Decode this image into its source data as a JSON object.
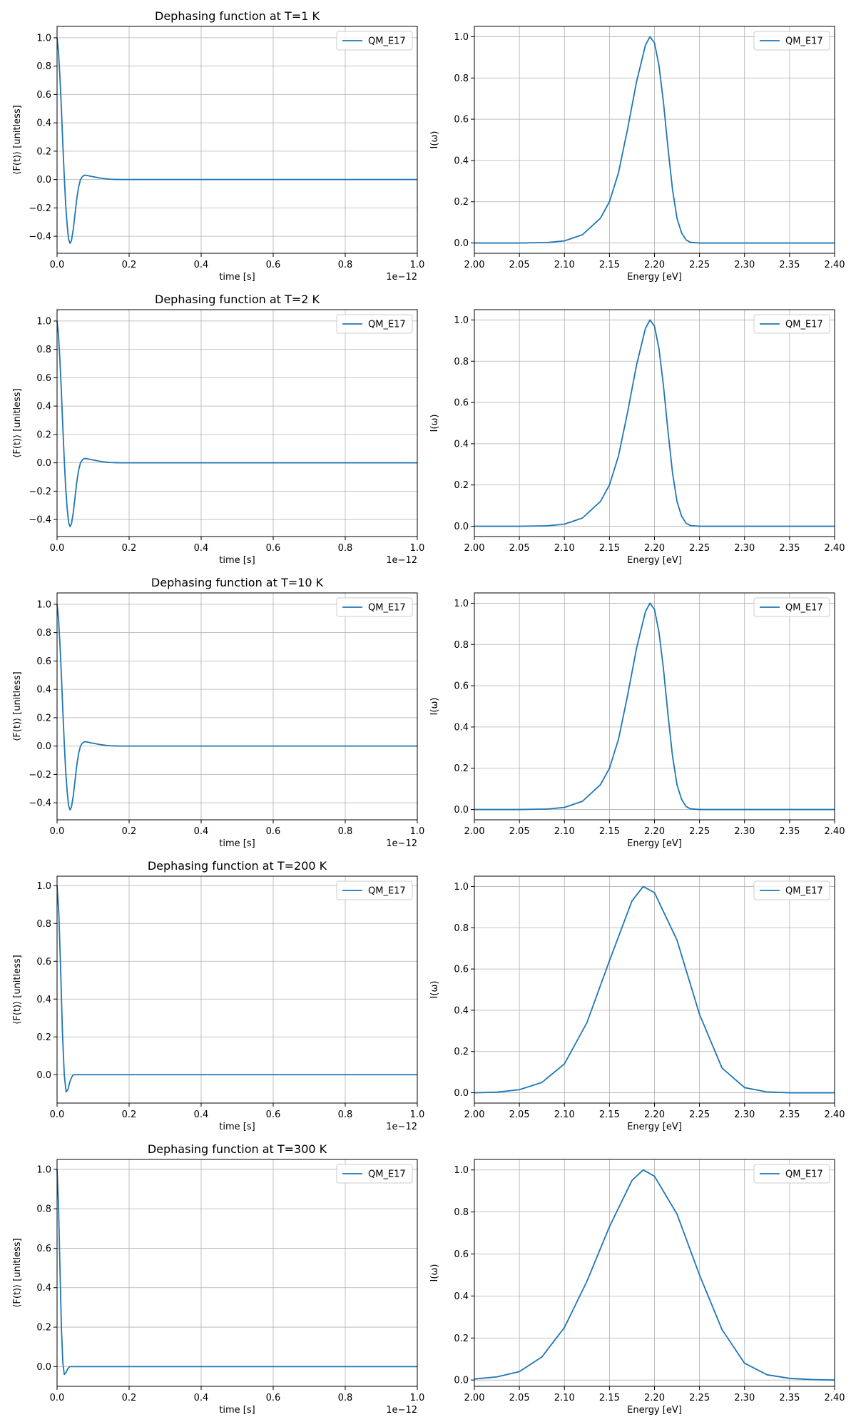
{
  "chart_data": [
    {
      "type": "line",
      "title": "Dephasing function at T=1 K",
      "xlabel": "time [s]",
      "ylabel": "⟨F(t)⟩ [unitless]",
      "x_offset_label": "1e−12",
      "xlim": [
        0,
        1.0
      ],
      "ylim": [
        -0.52,
        1.08
      ],
      "xticks": [
        "0.0",
        "0.2",
        "0.4",
        "0.6",
        "0.8",
        "1.0"
      ],
      "yticks": [
        "−0.4",
        "−0.2",
        "0.0",
        "0.2",
        "0.4",
        "0.6",
        "0.8",
        "1.0"
      ],
      "xtick_values": [
        0,
        0.2,
        0.4,
        0.6,
        0.8,
        1.0
      ],
      "ytick_values": [
        -0.4,
        -0.2,
        0,
        0.2,
        0.4,
        0.6,
        0.8,
        1.0
      ],
      "grid": true,
      "legend": "top-right",
      "series": [
        {
          "name": "QM_E17",
          "x": [
            0,
            0.004,
            0.008,
            0.012,
            0.016,
            0.02,
            0.024,
            0.028,
            0.032,
            0.036,
            0.04,
            0.045,
            0.05,
            0.055,
            0.06,
            0.065,
            0.07,
            0.075,
            0.08,
            0.085,
            0.09,
            0.095,
            0.1,
            0.11,
            0.12,
            0.13,
            0.14,
            0.15,
            0.16,
            0.18,
            0.2,
            0.25,
            0.3,
            0.4,
            0.5,
            0.6,
            0.7,
            0.8,
            0.9,
            1.0
          ],
          "y": [
            1.0,
            0.9,
            0.72,
            0.5,
            0.25,
            0.02,
            -0.18,
            -0.32,
            -0.42,
            -0.45,
            -0.43,
            -0.35,
            -0.24,
            -0.13,
            -0.05,
            0.0,
            0.02,
            0.03,
            0.03,
            0.028,
            0.025,
            0.022,
            0.02,
            0.015,
            0.01,
            0.007,
            0.004,
            0.002,
            0.001,
            0.0,
            0.0,
            0.0,
            0.0,
            0.0,
            0.0,
            0.0,
            0.0,
            0.0,
            0.0,
            0.0
          ]
        }
      ]
    },
    {
      "type": "line",
      "title": "",
      "xlabel": "Energy [eV]",
      "ylabel": "I(ω)",
      "x_offset_label": "",
      "xlim": [
        2.0,
        2.4
      ],
      "ylim": [
        -0.05,
        1.05
      ],
      "xticks": [
        "2.00",
        "2.05",
        "2.10",
        "2.15",
        "2.20",
        "2.25",
        "2.30",
        "2.35",
        "2.40"
      ],
      "yticks": [
        "0.0",
        "0.2",
        "0.4",
        "0.6",
        "0.8",
        "1.0"
      ],
      "xtick_values": [
        2.0,
        2.05,
        2.1,
        2.15,
        2.2,
        2.25,
        2.3,
        2.35,
        2.4
      ],
      "ytick_values": [
        0,
        0.2,
        0.4,
        0.6,
        0.8,
        1.0
      ],
      "grid": true,
      "legend": "top-right",
      "series": [
        {
          "name": "QM_E17",
          "x": [
            2.0,
            2.05,
            2.08,
            2.1,
            2.12,
            2.14,
            2.15,
            2.16,
            2.17,
            2.18,
            2.19,
            2.195,
            2.2,
            2.205,
            2.21,
            2.215,
            2.22,
            2.225,
            2.23,
            2.235,
            2.24,
            2.25,
            2.3,
            2.35,
            2.4
          ],
          "y": [
            0.0,
            0.0,
            0.002,
            0.01,
            0.04,
            0.12,
            0.2,
            0.34,
            0.55,
            0.78,
            0.96,
            1.0,
            0.97,
            0.86,
            0.68,
            0.46,
            0.26,
            0.12,
            0.05,
            0.015,
            0.003,
            0.0,
            0.0,
            0.0,
            0.0
          ]
        }
      ]
    },
    {
      "type": "line",
      "title": "Dephasing function at T=2 K",
      "xlabel": "time [s]",
      "ylabel": "⟨F(t)⟩ [unitless]",
      "x_offset_label": "1e−12",
      "xlim": [
        0,
        1.0
      ],
      "ylim": [
        -0.52,
        1.08
      ],
      "xticks": [
        "0.0",
        "0.2",
        "0.4",
        "0.6",
        "0.8",
        "1.0"
      ],
      "yticks": [
        "−0.4",
        "−0.2",
        "0.0",
        "0.2",
        "0.4",
        "0.6",
        "0.8",
        "1.0"
      ],
      "xtick_values": [
        0,
        0.2,
        0.4,
        0.6,
        0.8,
        1.0
      ],
      "ytick_values": [
        -0.4,
        -0.2,
        0,
        0.2,
        0.4,
        0.6,
        0.8,
        1.0
      ],
      "grid": true,
      "legend": "top-right",
      "series": [
        {
          "name": "QM_E17",
          "x": [
            0,
            0.004,
            0.008,
            0.012,
            0.016,
            0.02,
            0.024,
            0.028,
            0.032,
            0.036,
            0.04,
            0.045,
            0.05,
            0.055,
            0.06,
            0.065,
            0.07,
            0.075,
            0.08,
            0.085,
            0.09,
            0.095,
            0.1,
            0.11,
            0.12,
            0.13,
            0.14,
            0.15,
            0.16,
            0.18,
            0.2,
            0.25,
            0.3,
            0.4,
            0.5,
            0.6,
            0.7,
            0.8,
            0.9,
            1.0
          ],
          "y": [
            1.0,
            0.9,
            0.72,
            0.5,
            0.25,
            0.02,
            -0.18,
            -0.32,
            -0.42,
            -0.45,
            -0.43,
            -0.35,
            -0.24,
            -0.13,
            -0.05,
            0.0,
            0.02,
            0.03,
            0.03,
            0.028,
            0.025,
            0.022,
            0.02,
            0.015,
            0.01,
            0.007,
            0.004,
            0.002,
            0.001,
            0.0,
            0.0,
            0.0,
            0.0,
            0.0,
            0.0,
            0.0,
            0.0,
            0.0,
            0.0,
            0.0
          ]
        }
      ]
    },
    {
      "type": "line",
      "title": "",
      "xlabel": "Energy [eV]",
      "ylabel": "I(ω)",
      "x_offset_label": "",
      "xlim": [
        2.0,
        2.4
      ],
      "ylim": [
        -0.05,
        1.05
      ],
      "xticks": [
        "2.00",
        "2.05",
        "2.10",
        "2.15",
        "2.20",
        "2.25",
        "2.30",
        "2.35",
        "2.40"
      ],
      "yticks": [
        "0.0",
        "0.2",
        "0.4",
        "0.6",
        "0.8",
        "1.0"
      ],
      "xtick_values": [
        2.0,
        2.05,
        2.1,
        2.15,
        2.2,
        2.25,
        2.3,
        2.35,
        2.4
      ],
      "ytick_values": [
        0,
        0.2,
        0.4,
        0.6,
        0.8,
        1.0
      ],
      "grid": true,
      "legend": "top-right",
      "series": [
        {
          "name": "QM_E17",
          "x": [
            2.0,
            2.05,
            2.08,
            2.1,
            2.12,
            2.14,
            2.15,
            2.16,
            2.17,
            2.18,
            2.19,
            2.195,
            2.2,
            2.205,
            2.21,
            2.215,
            2.22,
            2.225,
            2.23,
            2.235,
            2.24,
            2.25,
            2.3,
            2.35,
            2.4
          ],
          "y": [
            0.0,
            0.0,
            0.002,
            0.01,
            0.04,
            0.12,
            0.2,
            0.34,
            0.55,
            0.78,
            0.96,
            1.0,
            0.97,
            0.86,
            0.68,
            0.46,
            0.26,
            0.12,
            0.05,
            0.015,
            0.003,
            0.0,
            0.0,
            0.0,
            0.0
          ]
        }
      ]
    },
    {
      "type": "line",
      "title": "Dephasing function at T=10 K",
      "xlabel": "time [s]",
      "ylabel": "⟨F(t)⟩ [unitless]",
      "x_offset_label": "1e−12",
      "xlim": [
        0,
        1.0
      ],
      "ylim": [
        -0.52,
        1.08
      ],
      "xticks": [
        "0.0",
        "0.2",
        "0.4",
        "0.6",
        "0.8",
        "1.0"
      ],
      "yticks": [
        "−0.4",
        "−0.2",
        "0.0",
        "0.2",
        "0.4",
        "0.6",
        "0.8",
        "1.0"
      ],
      "xtick_values": [
        0,
        0.2,
        0.4,
        0.6,
        0.8,
        1.0
      ],
      "ytick_values": [
        -0.4,
        -0.2,
        0,
        0.2,
        0.4,
        0.6,
        0.8,
        1.0
      ],
      "grid": true,
      "legend": "top-right",
      "series": [
        {
          "name": "QM_E17",
          "x": [
            0,
            0.004,
            0.008,
            0.012,
            0.016,
            0.02,
            0.024,
            0.028,
            0.032,
            0.036,
            0.04,
            0.045,
            0.05,
            0.055,
            0.06,
            0.065,
            0.07,
            0.075,
            0.08,
            0.085,
            0.09,
            0.095,
            0.1,
            0.11,
            0.12,
            0.13,
            0.14,
            0.15,
            0.16,
            0.18,
            0.2,
            0.25,
            0.3,
            0.4,
            0.5,
            0.6,
            0.7,
            0.8,
            0.9,
            1.0
          ],
          "y": [
            1.0,
            0.9,
            0.72,
            0.5,
            0.25,
            0.02,
            -0.18,
            -0.32,
            -0.42,
            -0.45,
            -0.43,
            -0.35,
            -0.24,
            -0.13,
            -0.05,
            0.0,
            0.02,
            0.03,
            0.03,
            0.028,
            0.025,
            0.022,
            0.02,
            0.015,
            0.01,
            0.007,
            0.004,
            0.002,
            0.001,
            0.0,
            0.0,
            0.0,
            0.0,
            0.0,
            0.0,
            0.0,
            0.0,
            0.0,
            0.0,
            0.0
          ]
        }
      ]
    },
    {
      "type": "line",
      "title": "",
      "xlabel": "Energy [eV]",
      "ylabel": "I(ω)",
      "x_offset_label": "",
      "xlim": [
        2.0,
        2.4
      ],
      "ylim": [
        -0.05,
        1.05
      ],
      "xticks": [
        "2.00",
        "2.05",
        "2.10",
        "2.15",
        "2.20",
        "2.25",
        "2.30",
        "2.35",
        "2.40"
      ],
      "yticks": [
        "0.0",
        "0.2",
        "0.4",
        "0.6",
        "0.8",
        "1.0"
      ],
      "xtick_values": [
        2.0,
        2.05,
        2.1,
        2.15,
        2.2,
        2.25,
        2.3,
        2.35,
        2.4
      ],
      "ytick_values": [
        0,
        0.2,
        0.4,
        0.6,
        0.8,
        1.0
      ],
      "grid": true,
      "legend": "top-right",
      "series": [
        {
          "name": "QM_E17",
          "x": [
            2.0,
            2.05,
            2.08,
            2.1,
            2.12,
            2.14,
            2.15,
            2.16,
            2.17,
            2.18,
            2.19,
            2.195,
            2.2,
            2.205,
            2.21,
            2.215,
            2.22,
            2.225,
            2.23,
            2.235,
            2.24,
            2.25,
            2.3,
            2.35,
            2.4
          ],
          "y": [
            0.0,
            0.0,
            0.002,
            0.01,
            0.04,
            0.12,
            0.2,
            0.34,
            0.55,
            0.78,
            0.96,
            1.0,
            0.97,
            0.86,
            0.68,
            0.46,
            0.26,
            0.12,
            0.05,
            0.015,
            0.003,
            0.0,
            0.0,
            0.0,
            0.0
          ]
        }
      ]
    },
    {
      "type": "line",
      "title": "Dephasing function at T=200 K",
      "xlabel": "time [s]",
      "ylabel": "⟨F(t)⟩ [unitless]",
      "x_offset_label": "1e−12",
      "xlim": [
        0,
        1.0
      ],
      "ylim": [
        -0.15,
        1.05
      ],
      "xticks": [
        "0.0",
        "0.2",
        "0.4",
        "0.6",
        "0.8",
        "1.0"
      ],
      "yticks": [
        "0.0",
        "0.2",
        "0.4",
        "0.6",
        "0.8",
        "1.0"
      ],
      "xtick_values": [
        0,
        0.2,
        0.4,
        0.6,
        0.8,
        1.0
      ],
      "ytick_values": [
        0,
        0.2,
        0.4,
        0.6,
        0.8,
        1.0
      ],
      "grid": true,
      "legend": "top-right",
      "series": [
        {
          "name": "QM_E17",
          "x": [
            0,
            0.005,
            0.01,
            0.015,
            0.02,
            0.025,
            0.03,
            0.035,
            0.04,
            0.045,
            0.05,
            0.06,
            0.07,
            0.1,
            0.2,
            0.4,
            0.6,
            0.8,
            1.0
          ],
          "y": [
            1.0,
            0.85,
            0.55,
            0.22,
            0.0,
            -0.09,
            -0.08,
            -0.04,
            -0.015,
            0.0,
            0.0,
            0.0,
            0.0,
            0.0,
            0.0,
            0.0,
            0.0,
            0.0,
            0.0
          ]
        }
      ]
    },
    {
      "type": "line",
      "title": "",
      "xlabel": "Energy [eV]",
      "ylabel": "I(ω)",
      "x_offset_label": "",
      "xlim": [
        2.0,
        2.4
      ],
      "ylim": [
        -0.05,
        1.05
      ],
      "xticks": [
        "2.00",
        "2.05",
        "2.10",
        "2.15",
        "2.20",
        "2.25",
        "2.30",
        "2.35",
        "2.40"
      ],
      "yticks": [
        "0.0",
        "0.2",
        "0.4",
        "0.6",
        "0.8",
        "1.0"
      ],
      "xtick_values": [
        2.0,
        2.05,
        2.1,
        2.15,
        2.2,
        2.25,
        2.3,
        2.35,
        2.4
      ],
      "ytick_values": [
        0,
        0.2,
        0.4,
        0.6,
        0.8,
        1.0
      ],
      "grid": true,
      "legend": "top-right",
      "series": [
        {
          "name": "QM_E17",
          "x": [
            2.0,
            2.025,
            2.05,
            2.075,
            2.1,
            2.125,
            2.15,
            2.175,
            2.1875,
            2.2,
            2.225,
            2.25,
            2.275,
            2.3,
            2.325,
            2.35,
            2.375,
            2.4
          ],
          "y": [
            0.0,
            0.003,
            0.015,
            0.05,
            0.14,
            0.34,
            0.64,
            0.93,
            1.0,
            0.97,
            0.74,
            0.38,
            0.12,
            0.025,
            0.004,
            0.0,
            0.0,
            0.0
          ]
        }
      ]
    },
    {
      "type": "line",
      "title": "Dephasing function at T=300 K",
      "xlabel": "time [s]",
      "ylabel": "⟨F(t)⟩ [unitless]",
      "x_offset_label": "1e−12",
      "xlim": [
        0,
        1.0
      ],
      "ylim": [
        -0.1,
        1.05
      ],
      "xticks": [
        "0.0",
        "0.2",
        "0.4",
        "0.6",
        "0.8",
        "1.0"
      ],
      "yticks": [
        "0.0",
        "0.2",
        "0.4",
        "0.6",
        "0.8",
        "1.0"
      ],
      "xtick_values": [
        0,
        0.2,
        0.4,
        0.6,
        0.8,
        1.0
      ],
      "ytick_values": [
        0,
        0.2,
        0.4,
        0.6,
        0.8,
        1.0
      ],
      "grid": true,
      "legend": "top-right",
      "series": [
        {
          "name": "QM_E17",
          "x": [
            0,
            0.004,
            0.008,
            0.012,
            0.016,
            0.02,
            0.025,
            0.03,
            0.035,
            0.04,
            0.05,
            0.06,
            0.1,
            0.2,
            0.4,
            0.6,
            0.8,
            1.0
          ],
          "y": [
            1.0,
            0.82,
            0.5,
            0.2,
            0.02,
            -0.04,
            -0.03,
            -0.01,
            0.0,
            0.0,
            0.0,
            0.0,
            0.0,
            0.0,
            0.0,
            0.0,
            0.0,
            0.0
          ]
        }
      ]
    },
    {
      "type": "line",
      "title": "",
      "xlabel": "Energy [eV]",
      "ylabel": "I(ω)",
      "x_offset_label": "",
      "xlim": [
        2.0,
        2.4
      ],
      "ylim": [
        -0.03,
        1.05
      ],
      "xticks": [
        "2.00",
        "2.05",
        "2.10",
        "2.15",
        "2.20",
        "2.25",
        "2.30",
        "2.35",
        "2.40"
      ],
      "yticks": [
        "0.0",
        "0.2",
        "0.4",
        "0.6",
        "0.8",
        "1.0"
      ],
      "xtick_values": [
        2.0,
        2.05,
        2.1,
        2.15,
        2.2,
        2.25,
        2.3,
        2.35,
        2.4
      ],
      "ytick_values": [
        0,
        0.2,
        0.4,
        0.6,
        0.8,
        1.0
      ],
      "grid": true,
      "legend": "top-right",
      "series": [
        {
          "name": "QM_E17",
          "x": [
            2.0,
            2.025,
            2.05,
            2.075,
            2.1,
            2.125,
            2.15,
            2.175,
            2.1875,
            2.2,
            2.225,
            2.25,
            2.275,
            2.3,
            2.325,
            2.35,
            2.375,
            2.4
          ],
          "y": [
            0.005,
            0.015,
            0.04,
            0.11,
            0.25,
            0.47,
            0.73,
            0.95,
            1.0,
            0.97,
            0.79,
            0.5,
            0.24,
            0.08,
            0.025,
            0.008,
            0.002,
            0.0
          ]
        }
      ]
    }
  ]
}
